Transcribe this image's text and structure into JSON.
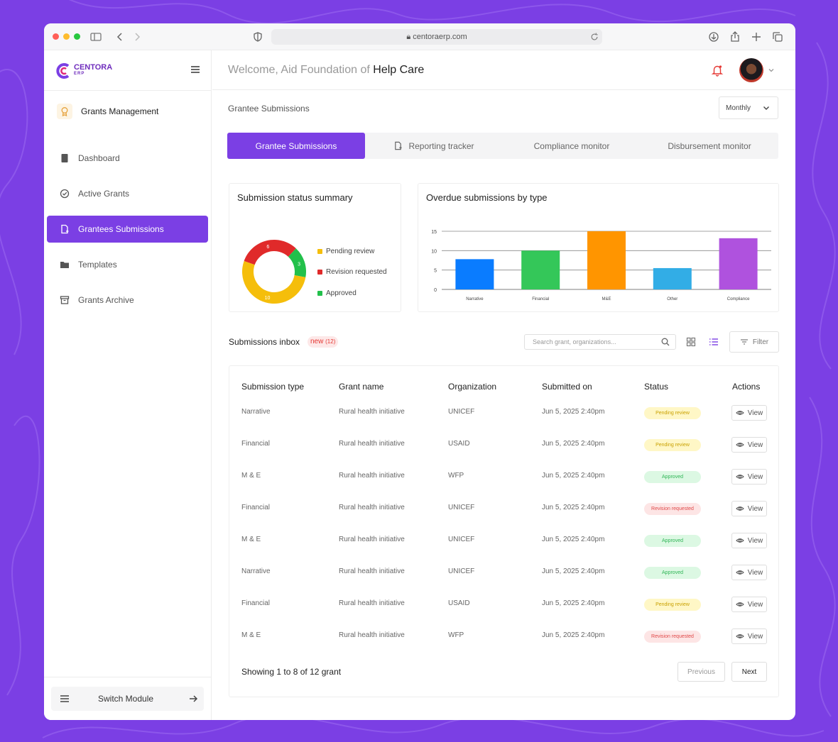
{
  "browser": {
    "url": "centoraerp.com"
  },
  "brand": {
    "name": "CENTORA",
    "sub": "ERP",
    "color": "#7B3FE4"
  },
  "sidebar": {
    "module_title": "Grants Management",
    "items": [
      {
        "label": "Dashboard",
        "icon": "book-icon",
        "active": false
      },
      {
        "label": "Active Grants",
        "icon": "check-circle-icon",
        "active": false
      },
      {
        "label": "Grantees Submissions",
        "icon": "file-icon",
        "active": true
      },
      {
        "label": "Templates",
        "icon": "folder-icon",
        "active": false
      },
      {
        "label": "Grants Archive",
        "icon": "archive-icon",
        "active": false
      }
    ],
    "switch_module": "Switch Module"
  },
  "header": {
    "welcome_prefix": "Welcome, Aid Foundation of ",
    "welcome_name": "Help Care"
  },
  "page": {
    "section_title": "Grantee Submissions",
    "period_select": "Monthly",
    "tabs": [
      {
        "label": "Grantee Submissions",
        "active": true
      },
      {
        "label": "Reporting tracker",
        "active": false
      },
      {
        "label": "Compliance monitor",
        "active": false
      },
      {
        "label": "Disbursement monitor",
        "active": false
      }
    ]
  },
  "summary_card": {
    "title": "Submission status summary",
    "legend": [
      "Pending review",
      "Revision requested",
      "Approved"
    ]
  },
  "overdue_card": {
    "title": "Overdue submissions by type"
  },
  "chart_data": [
    {
      "type": "pie",
      "title": "Submission status summary",
      "categories": [
        "Pending review",
        "Revision requested",
        "Approved"
      ],
      "values": [
        10,
        6,
        3
      ],
      "colors": [
        "#F5BE0B",
        "#E02A2A",
        "#22C04B"
      ],
      "donut": true
    },
    {
      "type": "bar",
      "title": "Overdue submissions by type",
      "categories": [
        "Narrative",
        "Financial",
        "M&E",
        "Other",
        "Compliance"
      ],
      "values": [
        7.8,
        10,
        15,
        5.5,
        13.2
      ],
      "colors": [
        "#0A7CFF",
        "#34C759",
        "#FF9500",
        "#32ADE6",
        "#AF52DE"
      ],
      "yticks": [
        0,
        5,
        10,
        15
      ],
      "ylim": [
        0,
        15
      ],
      "grid": true
    }
  ],
  "inbox": {
    "title": "Submissions inbox",
    "new_label": "new",
    "new_count": "(12)",
    "search_placeholder": "Search grant, organizations...",
    "filter_label": "Filter",
    "columns": [
      "Submission type",
      "Grant name",
      "Organization",
      "Submitted on",
      "Status",
      "Actions"
    ],
    "rows": [
      {
        "type": "Narrative",
        "grant": "Rural health initiative",
        "org": "UNICEF",
        "date": "Jun 5, 2025 2:40pm",
        "status": "Pending review",
        "kind": "pending",
        "action": "View"
      },
      {
        "type": "Financial",
        "grant": "Rural health initiative",
        "org": "USAID",
        "date": "Jun 5, 2025 2:40pm",
        "status": "Pending review",
        "kind": "pending",
        "action": "View"
      },
      {
        "type": "M & E",
        "grant": "Rural health initiative",
        "org": "WFP",
        "date": "Jun 5, 2025 2:40pm",
        "status": "Approved",
        "kind": "approved",
        "action": "View"
      },
      {
        "type": "Financial",
        "grant": "Rural health initiative",
        "org": "UNICEF",
        "date": "Jun 5, 2025 2:40pm",
        "status": "Revision requested",
        "kind": "revision",
        "action": "View"
      },
      {
        "type": "M & E",
        "grant": "Rural health initiative",
        "org": "UNICEF",
        "date": "Jun 5, 2025 2:40pm",
        "status": "Approved",
        "kind": "approved",
        "action": "View"
      },
      {
        "type": "Narrative",
        "grant": "Rural health initiative",
        "org": "UNICEF",
        "date": "Jun 5, 2025 2:40pm",
        "status": "Approved",
        "kind": "approved",
        "action": "View"
      },
      {
        "type": "Financial",
        "grant": "Rural health initiative",
        "org": "USAID",
        "date": "Jun 5, 2025 2:40pm",
        "status": "Pending review",
        "kind": "pending",
        "action": "View"
      },
      {
        "type": "M & E",
        "grant": "Rural health initiative",
        "org": "WFP",
        "date": "Jun 5, 2025 2:40pm",
        "status": "Revision requested",
        "kind": "revision",
        "action": "View"
      }
    ],
    "footer_text": "Showing 1 to 8 of 12 grant",
    "prev_label": "Previous",
    "next_label": "Next"
  }
}
